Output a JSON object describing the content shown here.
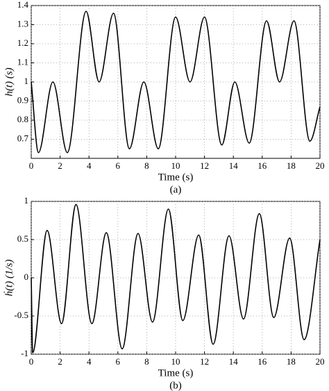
{
  "chart_data": [
    {
      "type": "line",
      "xlabel": "Time (s)",
      "ylabel": "h(t) (s)",
      "caption": "(a)",
      "xlim": [
        0,
        20
      ],
      "xticks": [
        0,
        2,
        4,
        6,
        8,
        10,
        12,
        14,
        16,
        18,
        20
      ],
      "ylim": [
        0.6,
        1.4
      ],
      "yticks": [
        0.7,
        0.8,
        0.9,
        1,
        1.1,
        1.2,
        1.3,
        1.4
      ],
      "grid": true,
      "series": [
        {
          "color": "#000000",
          "x": [
            0,
            0.5,
            1.5,
            2.5,
            3.8,
            4.7,
            5.7,
            6.8,
            7.8,
            8.8,
            10.0,
            11.0,
            12.0,
            13.2,
            14.1,
            15.1,
            16.3,
            17.2,
            18.2,
            19.3,
            20
          ],
          "values": [
            1.0,
            0.63,
            1.0,
            0.63,
            1.37,
            1.0,
            1.36,
            0.65,
            1.0,
            0.65,
            1.34,
            1.0,
            1.34,
            0.67,
            1.0,
            0.68,
            1.32,
            1.0,
            1.32,
            0.69,
            0.87
          ]
        }
      ]
    },
    {
      "type": "line",
      "xlabel": "Time (s)",
      "ylabel": "ḣ(t) (1/s)",
      "caption": "(b)",
      "xlim": [
        0,
        20
      ],
      "xticks": [
        0,
        2,
        4,
        6,
        8,
        10,
        12,
        14,
        16,
        18,
        20
      ],
      "ylim": [
        -1,
        1
      ],
      "yticks": [
        -1,
        -0.5,
        0,
        0.5,
        1
      ],
      "grid": true,
      "series": [
        {
          "color": "#000000",
          "x": [
            0,
            0.1,
            1.1,
            2.1,
            3.1,
            4.2,
            5.2,
            6.3,
            7.4,
            8.4,
            9.5,
            10.5,
            11.6,
            12.6,
            13.7,
            14.7,
            15.8,
            16.8,
            17.9,
            18.9,
            20
          ],
          "values": [
            0,
            -0.98,
            0.62,
            -0.6,
            0.96,
            -0.6,
            0.59,
            -0.93,
            0.58,
            -0.58,
            0.9,
            -0.56,
            0.56,
            -0.87,
            0.55,
            -0.54,
            0.84,
            -0.52,
            0.52,
            -0.81,
            0.5
          ]
        }
      ]
    }
  ]
}
